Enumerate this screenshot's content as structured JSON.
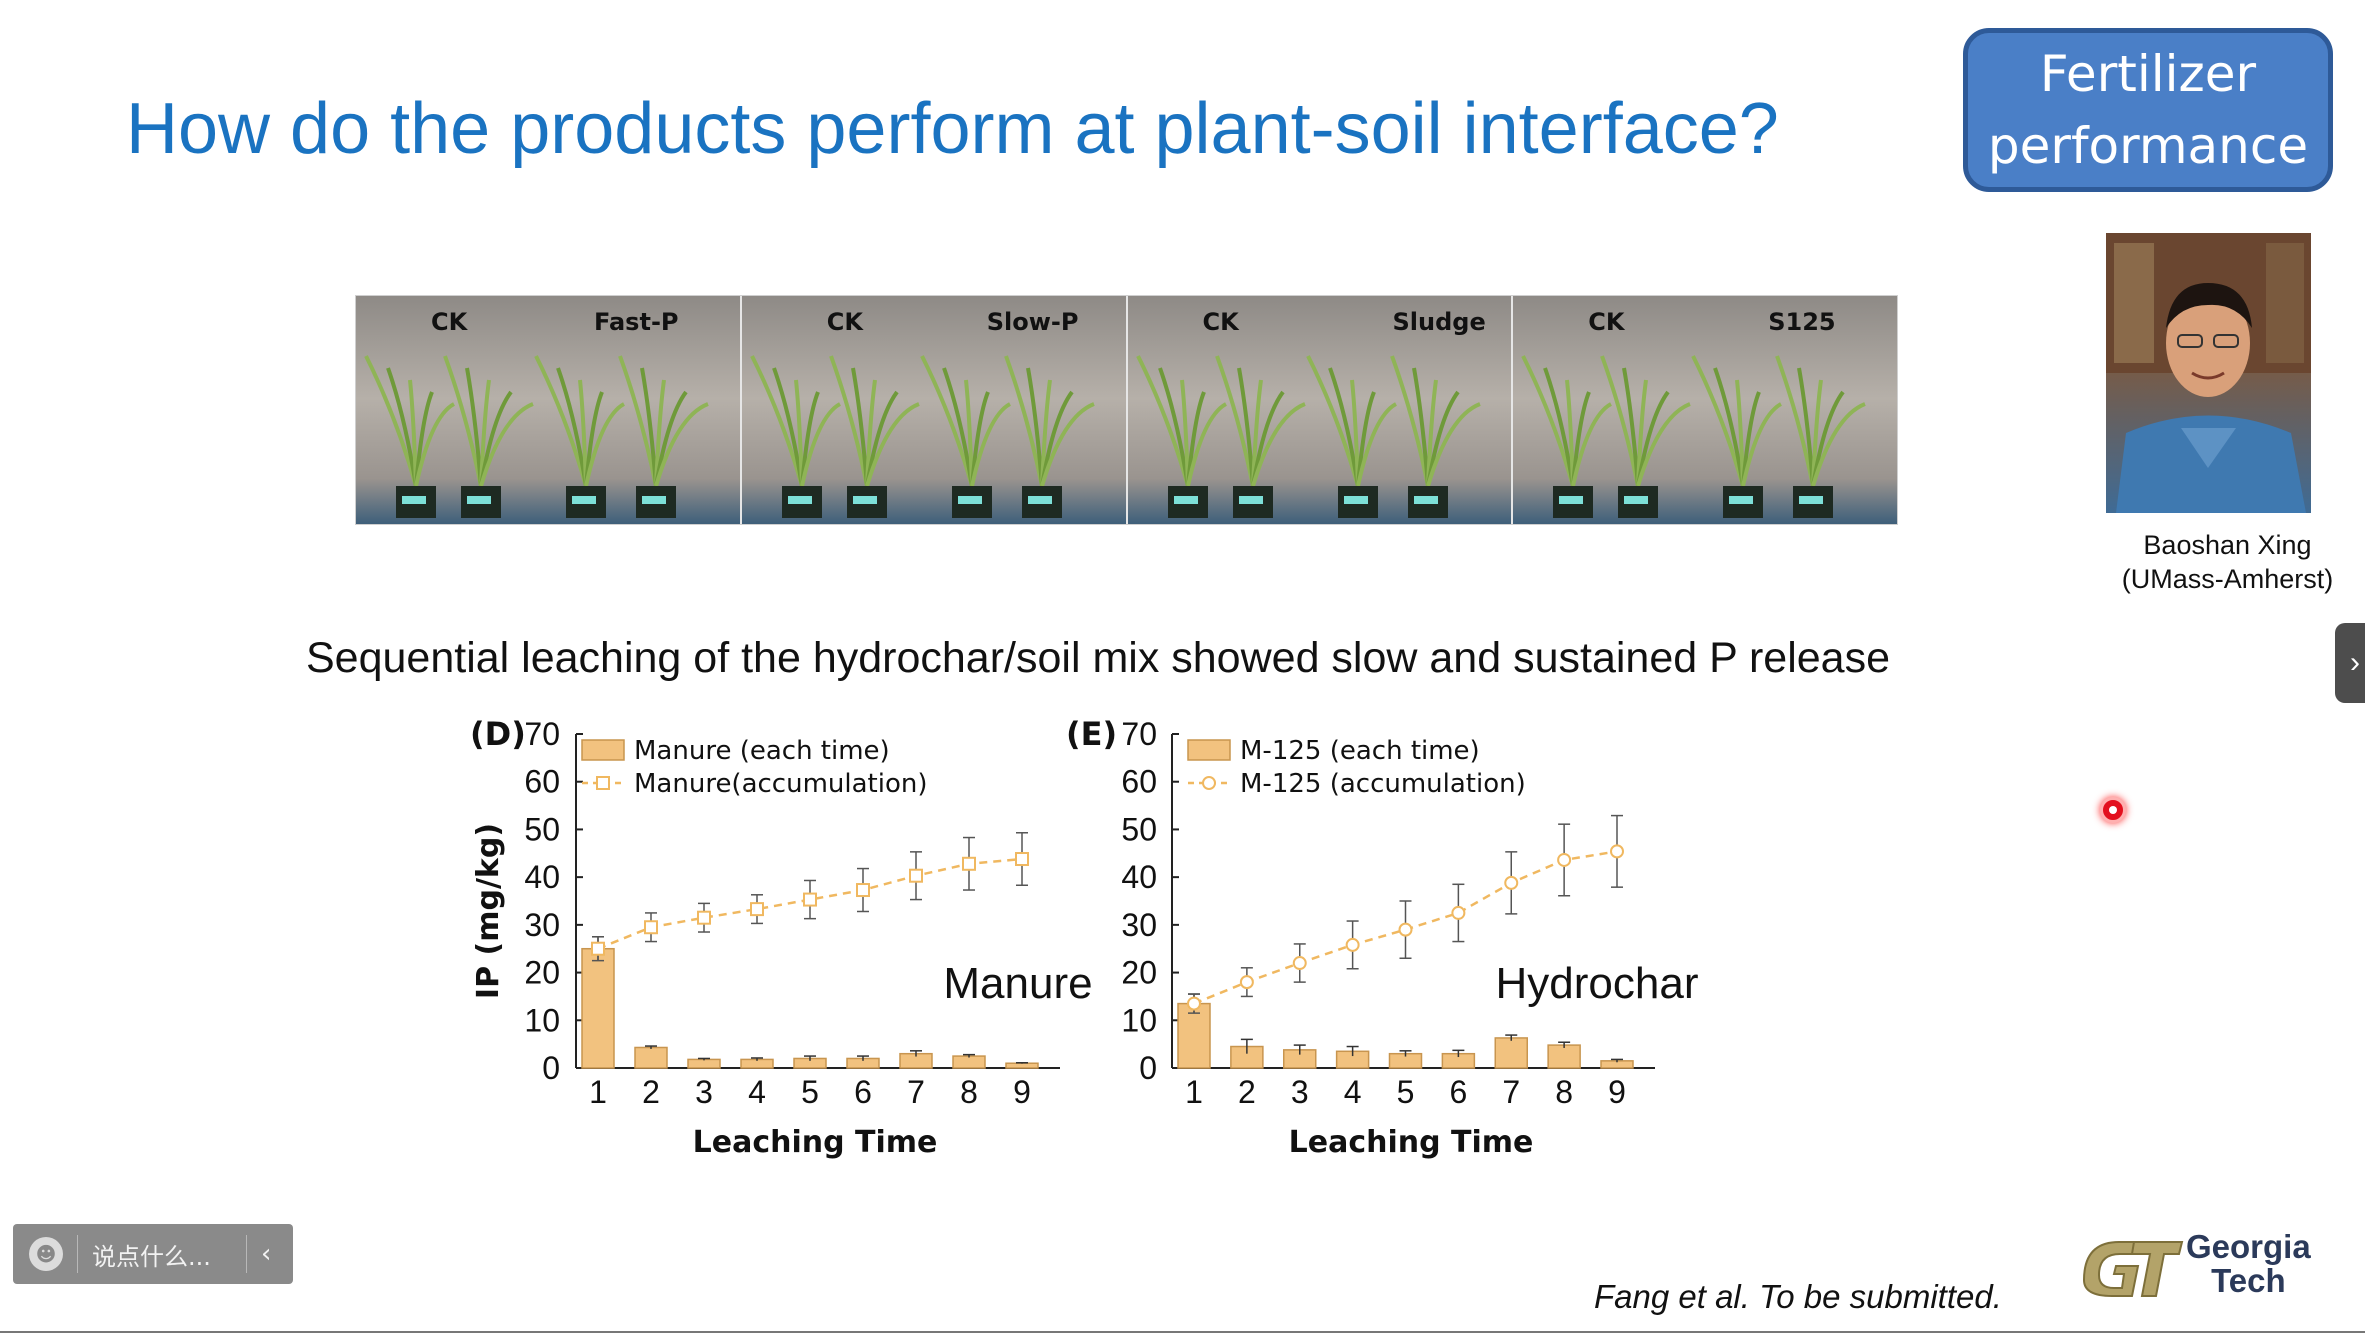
{
  "slide": {
    "title": "How do the products perform at plant-soil interface?",
    "badge_line1": "Fertilizer",
    "badge_line2": "performance",
    "subtitle": "Sequential leaching of the hydrochar/soil mix showed slow and sustained P release",
    "citation": "Fang et al. To be submitted.",
    "logo_line1": "Georgia",
    "logo_line2": "Tech"
  },
  "photo_strip": [
    {
      "left_label": "CK",
      "right_label": "Fast-P"
    },
    {
      "left_label": "CK",
      "right_label": "Slow-P"
    },
    {
      "left_label": "CK",
      "right_label": "Sludge"
    },
    {
      "left_label": "CK",
      "right_label": "S125"
    }
  ],
  "presenter": {
    "name": "Baoshan Xing",
    "affiliation": "(UMass-Amherst)"
  },
  "ui": {
    "chat_placeholder": "说点什么...",
    "chat_collapse_icon": "chevron-left-icon",
    "side_tab_icon": "chevron-right-icon",
    "emoji_icon": "smiley-icon"
  },
  "colors": {
    "title_blue": "#1a73c1",
    "badge_blue": "#4a7fc7",
    "bar_fill": "#f2c27f",
    "bar_stroke": "#c8954f",
    "line_color": "#f0b860",
    "laser_red": "#e3101e"
  },
  "chart_data": [
    {
      "type": "bar",
      "panel": "(D)",
      "annotation": "Manure",
      "xlabel": "Leaching Time",
      "ylabel": "IP (mg/kg)",
      "ylim": [
        0,
        70
      ],
      "yticks": [
        0,
        10,
        20,
        30,
        40,
        50,
        60,
        70
      ],
      "categories": [
        "1",
        "2",
        "3",
        "4",
        "5",
        "6",
        "7",
        "8",
        "9"
      ],
      "series": [
        {
          "name": "Manure (each time)",
          "kind": "bar",
          "values": [
            25,
            4.3,
            1.8,
            1.8,
            2.0,
            2.0,
            3.0,
            2.5,
            1.0
          ],
          "errors": [
            2.5,
            0.3,
            0.2,
            0.3,
            0.5,
            0.5,
            0.6,
            0.3,
            0.1
          ]
        },
        {
          "name": "Manure(accumulation)",
          "kind": "line",
          "values": [
            25,
            29.5,
            31.5,
            33.3,
            35.3,
            37.3,
            40.3,
            42.8,
            43.8
          ],
          "errors": [
            2.5,
            3,
            3,
            3,
            4,
            4.5,
            5,
            5.5,
            5.5
          ]
        }
      ],
      "legend": "top-left"
    },
    {
      "type": "bar",
      "panel": "(E)",
      "annotation": "Hydrochar",
      "xlabel": "Leaching Time",
      "ylabel": "",
      "ylim": [
        0,
        70
      ],
      "yticks": [
        0,
        10,
        20,
        30,
        40,
        50,
        60,
        70
      ],
      "categories": [
        "1",
        "2",
        "3",
        "4",
        "5",
        "6",
        "7",
        "8",
        "9"
      ],
      "series": [
        {
          "name": "M-125 (each time)",
          "kind": "bar",
          "values": [
            13.5,
            4.5,
            3.8,
            3.5,
            3.0,
            3.0,
            6.3,
            4.8,
            1.5
          ],
          "errors": [
            2,
            1.5,
            1,
            1,
            0.6,
            0.7,
            0.6,
            0.6,
            0.3
          ]
        },
        {
          "name": "M-125 (accumulation)",
          "kind": "line",
          "values": [
            13.5,
            18,
            22,
            25.8,
            29,
            32.5,
            38.8,
            43.6,
            45.4
          ],
          "errors": [
            2,
            3,
            4,
            5,
            6,
            6,
            6.5,
            7.5,
            7.5
          ]
        }
      ],
      "legend": "top-left"
    }
  ]
}
